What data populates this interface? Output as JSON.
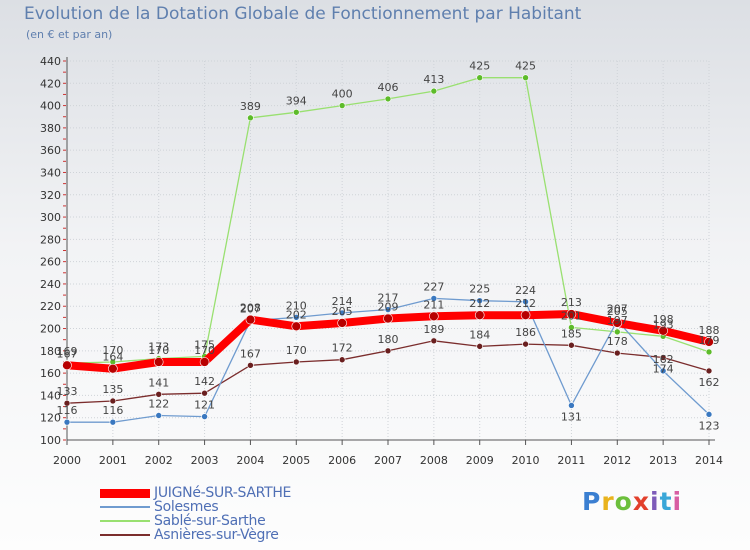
{
  "title": "Evolution de la Dotation Globale de Fonctionnement par Habitant",
  "subtitle": "(en € et par an)",
  "brand": {
    "letters": [
      "P",
      "r",
      "o",
      "x",
      "i",
      "t",
      "i"
    ],
    "colors": [
      "#3b7fd1",
      "#e9b31d",
      "#6cbf3c",
      "#e2402c",
      "#7d5bb9",
      "#3aa7d8",
      "#d85fa3"
    ]
  },
  "colors": {
    "juigne": "#ff0000",
    "juigne_marker": "#b80000",
    "solesmes": "#6f9bcf",
    "solesmes_marker": "#3a78c0",
    "sable": "#99e070",
    "sable_marker": "#5dbb2a",
    "asnieres": "#7b2d2d",
    "asnieres_marker": "#6a1f1f",
    "axis_text": "#333333",
    "grid": "#cfd3d8",
    "label": "#444444"
  },
  "chart_data": {
    "type": "line",
    "title": "Evolution de la Dotation Globale de Fonctionnement par Habitant",
    "subtitle": "(en € et par an)",
    "xlabel": "",
    "ylabel": "",
    "ylim": [
      100,
      440
    ],
    "ytick_step": 20,
    "yticks": [
      "100",
      "120",
      "140",
      "160",
      "180",
      "200",
      "220",
      "240",
      "260",
      "280",
      "300",
      "320",
      "340",
      "360",
      "380",
      "400",
      "420",
      "440"
    ],
    "categories": [
      "2000",
      "2001",
      "2002",
      "2003",
      "2004",
      "2005",
      "2006",
      "2007",
      "2008",
      "2009",
      "2010",
      "2011",
      "2012",
      "2013",
      "2014"
    ],
    "series": [
      {
        "key": "juigne",
        "name": "JUIGNé-SUR-SARTHE",
        "values": [
          167,
          164,
          170,
          170,
          208,
          202,
          205,
          209,
          211,
          212,
          212,
          213,
          205,
          198,
          188
        ]
      },
      {
        "key": "solesmes",
        "name": "Solesmes",
        "values": [
          116,
          116,
          122,
          121,
          207,
          210,
          214,
          217,
          227,
          225,
          224,
          131,
          207,
          162,
          123
        ]
      },
      {
        "key": "sable",
        "name": "Sablé-sur-Sarthe",
        "values": [
          169,
          170,
          173,
          175,
          389,
          394,
          400,
          406,
          413,
          425,
          425,
          201,
          197,
          193,
          179
        ]
      },
      {
        "key": "asnieres",
        "name": "Asnières-sur-Vègre",
        "values": [
          133,
          135,
          141,
          142,
          167,
          170,
          172,
          180,
          189,
          184,
          186,
          185,
          178,
          174,
          162
        ]
      }
    ]
  }
}
